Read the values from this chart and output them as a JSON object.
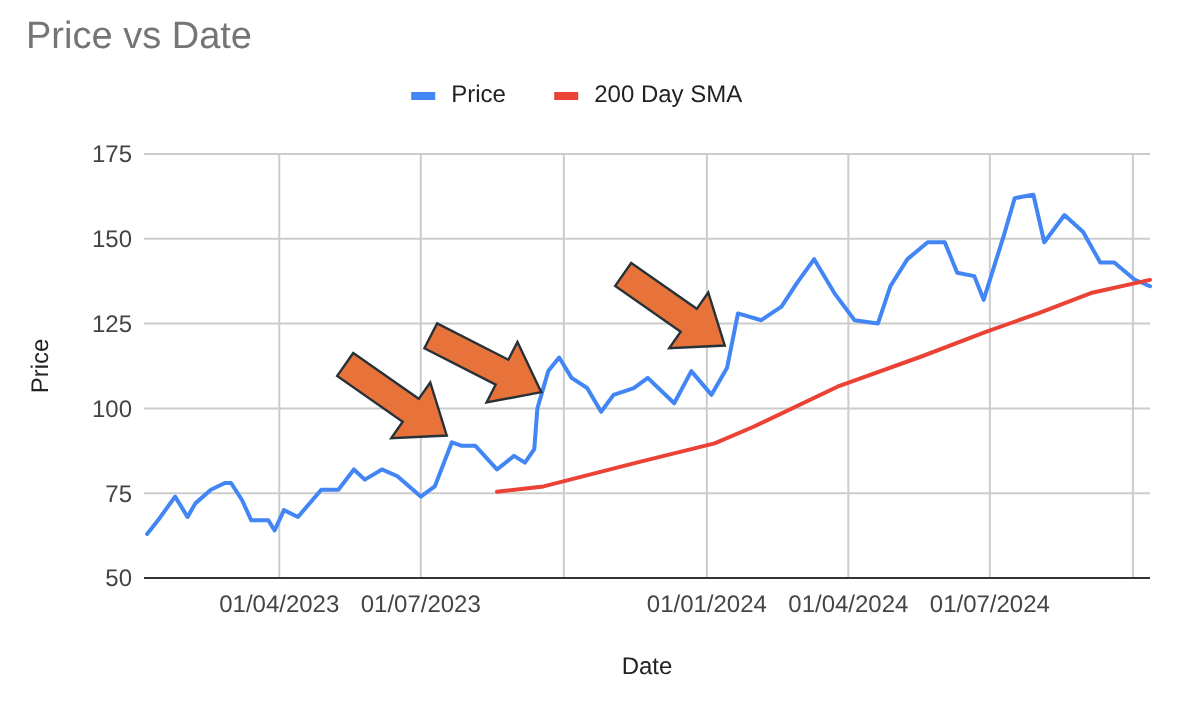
{
  "chart_data": {
    "type": "line",
    "title": "Price vs Date",
    "xlabel": "Date",
    "ylabel": "Price",
    "xlim": [
      "2023-01-04",
      "2024-10-12"
    ],
    "ylim": [
      50,
      175
    ],
    "xticks": [
      {
        "value": "2023-04-01",
        "label": "01/04/2023"
      },
      {
        "value": "2023-07-01",
        "label": "01/07/2023"
      },
      {
        "value": "2023-10-01",
        "label": null
      },
      {
        "value": "2024-01-01",
        "label": "01/01/2024"
      },
      {
        "value": "2024-04-01",
        "label": "01/04/2024"
      },
      {
        "value": "2024-07-01",
        "label": "01/07/2024"
      },
      {
        "value": "2024-10-01",
        "label": null
      }
    ],
    "yticks": [
      50,
      75,
      100,
      125,
      150,
      175
    ],
    "grid": true,
    "legend": "top",
    "series": [
      {
        "name": "Price",
        "color": "#4285f4",
        "x": [
          "2023-01-06",
          "2023-01-13",
          "2023-01-24",
          "2023-02-01",
          "2023-02-06",
          "2023-02-16",
          "2023-02-25",
          "2023-03-01",
          "2023-03-08",
          "2023-03-14",
          "2023-03-25",
          "2023-03-29",
          "2023-04-04",
          "2023-04-13",
          "2023-04-28",
          "2023-05-09",
          "2023-05-19",
          "2023-05-26",
          "2023-06-06",
          "2023-06-16",
          "2023-07-01",
          "2023-07-10",
          "2023-07-21",
          "2023-07-27",
          "2023-08-05",
          "2023-08-19",
          "2023-08-30",
          "2023-09-06",
          "2023-09-12",
          "2023-09-14",
          "2023-09-21",
          "2023-09-28",
          "2023-10-06",
          "2023-10-16",
          "2023-10-25",
          "2023-11-02",
          "2023-11-15",
          "2023-11-24",
          "2023-12-11",
          "2023-12-22",
          "2024-01-04",
          "2024-01-14",
          "2024-01-21",
          "2024-02-05",
          "2024-02-18",
          "2024-02-28",
          "2024-03-10",
          "2024-03-23",
          "2024-04-05",
          "2024-04-20",
          "2024-04-28",
          "2024-05-09",
          "2024-05-22",
          "2024-06-02",
          "2024-06-10",
          "2024-06-21",
          "2024-06-27",
          "2024-07-10",
          "2024-07-17",
          "2024-07-29",
          "2024-08-05",
          "2024-08-18",
          "2024-08-30",
          "2024-09-10",
          "2024-09-19",
          "2024-10-02",
          "2024-10-12"
        ],
        "values": [
          63,
          67,
          74,
          68,
          72,
          76,
          78,
          78,
          73,
          67,
          67,
          64,
          70,
          68,
          76,
          76,
          82,
          79,
          82,
          80,
          74,
          77,
          90,
          89,
          89,
          82,
          86,
          84,
          88,
          100,
          111,
          115,
          109,
          106,
          99,
          104,
          106,
          109,
          101.5,
          111,
          104,
          112,
          128,
          126,
          130,
          137,
          144,
          134,
          126,
          125,
          136,
          144,
          149,
          149,
          140,
          139,
          132,
          151,
          162,
          163,
          149,
          157,
          152,
          143,
          143,
          138,
          136
        ]
      },
      {
        "name": "200 Day SMA",
        "color": "#ea4335",
        "x": [
          "2023-08-19",
          "2023-09-18",
          "2023-11-20",
          "2024-01-06",
          "2024-01-31",
          "2024-03-25",
          "2024-05-18",
          "2024-06-28",
          "2024-08-01",
          "2024-09-04",
          "2024-10-12"
        ],
        "values": [
          75.4,
          77,
          84.4,
          89.7,
          94.6,
          106.4,
          115.3,
          122.5,
          128,
          134,
          137.9
        ]
      }
    ]
  }
}
